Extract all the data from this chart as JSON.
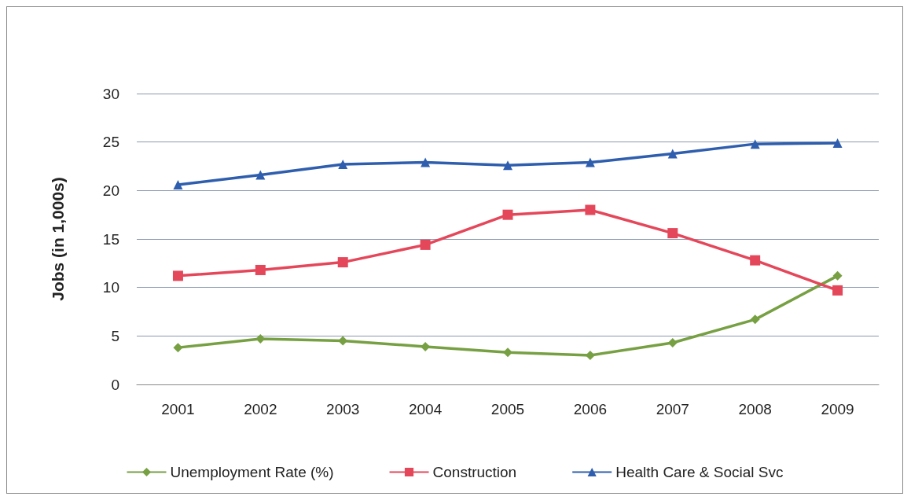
{
  "chart_data": {
    "type": "line",
    "ylabel": "Jobs (in 1,000s)",
    "categories": [
      "2001",
      "2002",
      "2003",
      "2004",
      "2005",
      "2006",
      "2007",
      "2008",
      "2009"
    ],
    "series": [
      {
        "name": "Unemployment Rate (%)",
        "color": "#77a043",
        "marker": "diamond",
        "values": [
          3.8,
          4.7,
          4.5,
          3.9,
          3.3,
          3.0,
          4.3,
          6.7,
          11.2
        ]
      },
      {
        "name": "Construction",
        "color": "#e5475a",
        "marker": "square",
        "values": [
          11.2,
          11.8,
          12.6,
          14.4,
          17.5,
          18.0,
          15.6,
          12.8,
          9.7
        ]
      },
      {
        "name": "Health Care & Social Svc",
        "color": "#2e5ead",
        "marker": "triangle",
        "values": [
          20.6,
          21.6,
          22.7,
          22.9,
          22.6,
          22.9,
          23.8,
          24.8,
          24.9
        ]
      }
    ],
    "ylim": [
      0,
      30
    ],
    "yticks": [
      0,
      5,
      10,
      15,
      20,
      25,
      30
    ],
    "grid": "y",
    "legend": "bottom"
  }
}
